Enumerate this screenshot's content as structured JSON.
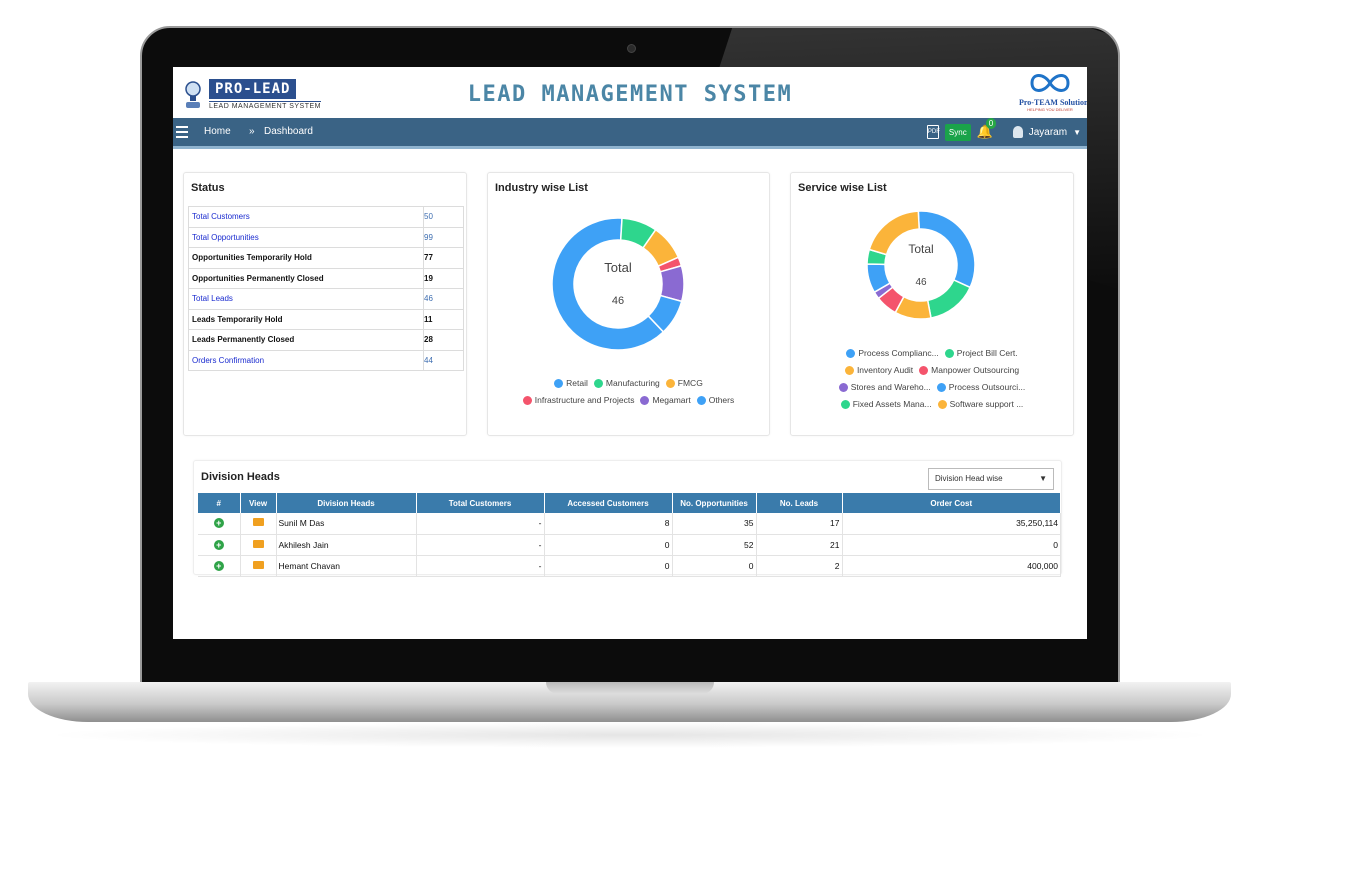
{
  "header": {
    "logo_word": "PRO-LEAD",
    "logo_sub": "LEAD MANAGEMENT SYSTEM",
    "title": "LEAD MANAGEMENT SYSTEM",
    "brand_name": "Pro-TEAM Solutions",
    "brand_tag": "HELPING YOU DELIVER"
  },
  "nav": {
    "home": "Home",
    "separator": "»",
    "dashboard": "Dashboard",
    "pdf_label": "PDF",
    "sync": "Sync",
    "notif_count": "0",
    "user": "Jayaram"
  },
  "status": {
    "title": "Status",
    "rows": [
      {
        "label": "Total Customers",
        "value": "50",
        "kind": "link"
      },
      {
        "label": "Total Opportunities",
        "value": "99",
        "kind": "link"
      },
      {
        "label": "Opportunities Temporarily Hold",
        "value": "77",
        "kind": "bold"
      },
      {
        "label": "Opportunities Permanently Closed",
        "value": "19",
        "kind": "bold"
      },
      {
        "label": "Total Leads",
        "value": "46",
        "kind": "link"
      },
      {
        "label": "Leads Temporarily Hold",
        "value": "11",
        "kind": "bold"
      },
      {
        "label": "Leads Permanently Closed",
        "value": "28",
        "kind": "bold"
      },
      {
        "label": "Orders Confirmation",
        "value": "44",
        "kind": "link"
      }
    ]
  },
  "industry": {
    "title": "Industry wise List",
    "center_label": "Total",
    "center_value": "46",
    "legend": [
      "Retail",
      "Manufacturing",
      "FMCG",
      "Infrastructure and Projects",
      "Megamart",
      "Others"
    ]
  },
  "service": {
    "title": "Service wise List",
    "center_label": "Total",
    "center_value": "46",
    "legend": [
      "Process Complianc...",
      "Project Bill Cert.",
      "Inventory Audit",
      "Manpower Outsourcing",
      "Stores and Wareho...",
      "Process Outsourci...",
      "Fixed Assets Mana...",
      "Software support ..."
    ]
  },
  "chart_data": [
    {
      "type": "pie",
      "title": "Industry wise List",
      "categories": [
        "Retail",
        "Manufacturing",
        "FMCG",
        "Infrastructure and Projects",
        "Megamart",
        "Others"
      ],
      "values": [
        29,
        4,
        4,
        1,
        4,
        4
      ],
      "colors": [
        "#3ea1f6",
        "#2ed68d",
        "#fbb43a",
        "#f4546c",
        "#8a6ad2",
        "#3ea1f6"
      ]
    },
    {
      "type": "pie",
      "title": "Service wise List",
      "categories": [
        "Process Complianc...",
        "Project Bill Cert.",
        "Inventory Audit",
        "Manpower Outsourcing",
        "Stores and Wareho...",
        "Process Outsourci...",
        "Fixed Assets Mana...",
        "Software support ..."
      ],
      "values": [
        15,
        7,
        5,
        3,
        1,
        4,
        2,
        9
      ],
      "colors": [
        "#3ea1f6",
        "#2ed68d",
        "#fbb43a",
        "#f4546c",
        "#8a6ad2",
        "#3ea1f6",
        "#2ed68d",
        "#fbb43a"
      ]
    }
  ],
  "division": {
    "title": "Division Heads",
    "select_value": "Division Head wise",
    "columns": [
      "#",
      "View",
      "Division Heads",
      "Total Customers",
      "Accessed Customers",
      "No. Opportunities",
      "No. Leads",
      "Order Cost"
    ],
    "rows": [
      {
        "name": "Sunil M Das",
        "total_customers": "-",
        "accessed": "8",
        "opportunities": "35",
        "leads": "17",
        "order_cost": "35,250,114"
      },
      {
        "name": "Akhilesh Jain",
        "total_customers": "-",
        "accessed": "0",
        "opportunities": "52",
        "leads": "21",
        "order_cost": "0"
      },
      {
        "name": "Hemant Chavan",
        "total_customers": "-",
        "accessed": "0",
        "opportunities": "0",
        "leads": "2",
        "order_cost": "400,000"
      }
    ]
  },
  "colors": {
    "navbar": "#3a6385",
    "title": "#4b86a6",
    "table_header": "#3a7bab",
    "sync": "#1aa34a"
  }
}
